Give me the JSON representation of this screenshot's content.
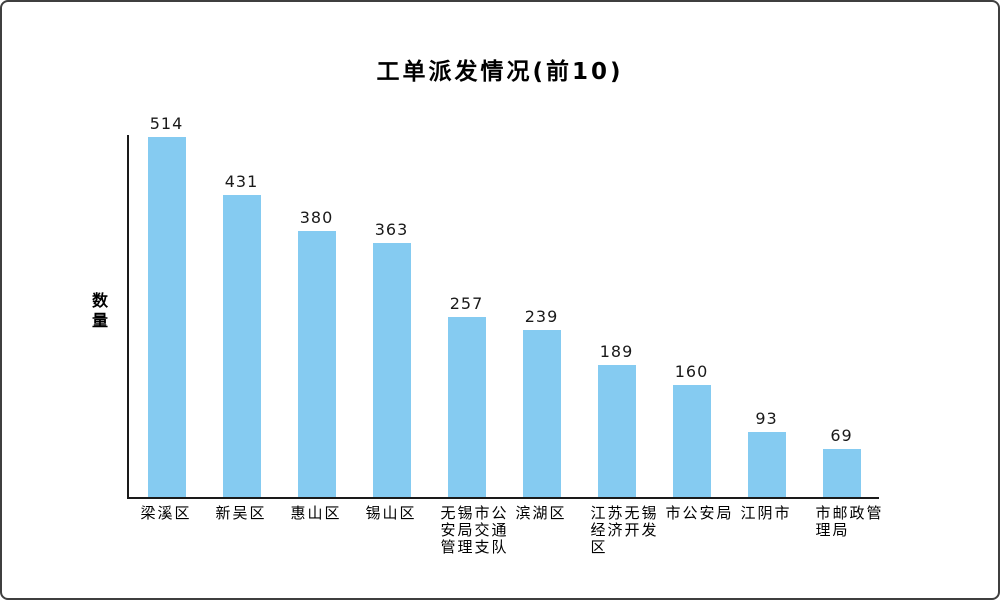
{
  "frame": {
    "background": "#ffffff",
    "border_color": "#3f3f3f"
  },
  "chart_data": {
    "type": "bar",
    "title": "工单派发情况(前10)",
    "xlabel": "",
    "ylabel": "数量",
    "categories": [
      "梁溪区",
      "新吴区",
      "惠山区",
      "锡山区",
      "无锡市公安局交通管理支队",
      "滨湖区",
      "江苏无锡经济开发区",
      "市公安局",
      "江阴市",
      "市邮政管理局"
    ],
    "values": [
      514,
      431,
      380,
      363,
      257,
      239,
      189,
      160,
      93,
      69
    ],
    "value_labels_shown": true,
    "ylim": [
      0,
      517
    ],
    "grid": false,
    "legend": false,
    "bar_color": "#85CBF1",
    "axis_color": "#1a1a1a",
    "text_color": "#000000"
  }
}
